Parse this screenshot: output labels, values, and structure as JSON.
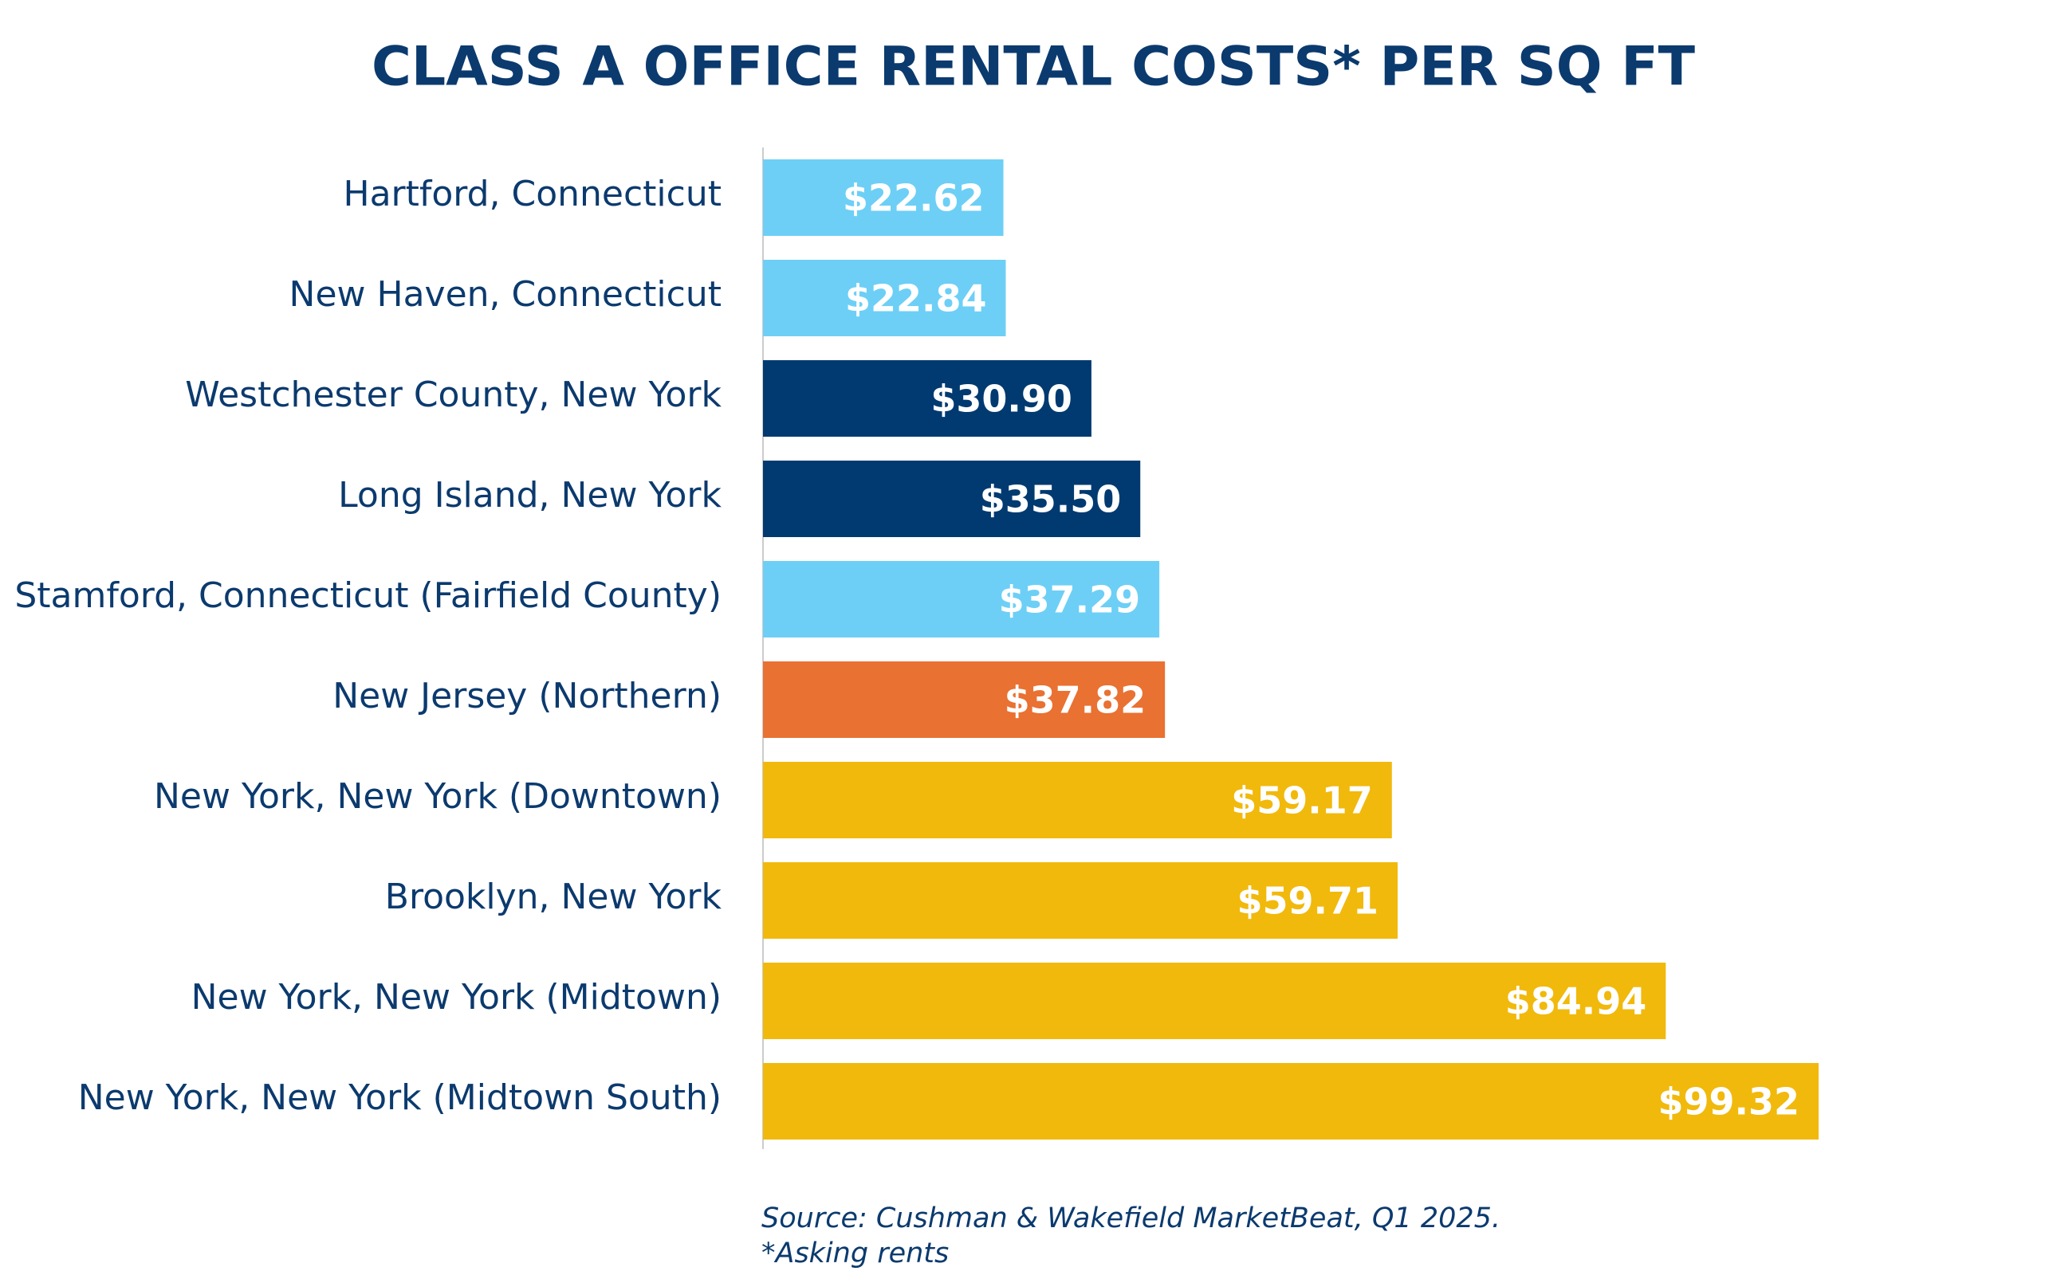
{
  "chart_data": {
    "type": "bar",
    "orientation": "horizontal",
    "title": "CLASS A OFFICE RENTAL COSTS* PER SQ FT",
    "categories": [
      "Hartford, Connecticut",
      "New Haven, Connecticut",
      "Westchester County, New York",
      "Long Island, New York",
      "Stamford, Connecticut (Fairfield County)",
      "New Jersey (Northern)",
      "New York, New York (Downtown)",
      "Brooklyn, New York",
      "New York, New York (Midtown)",
      "New York, New York (Midtown South)"
    ],
    "values": [
      22.62,
      22.84,
      30.9,
      35.5,
      37.29,
      37.82,
      59.17,
      59.71,
      84.94,
      99.32
    ],
    "value_labels": [
      "$22.62",
      "$22.84",
      "$30.90",
      "$35.50",
      "$37.29",
      "$37.82",
      "$59.17",
      "$59.71",
      "$84.94",
      "$99.32"
    ],
    "colors": [
      "#6dcff6",
      "#6dcff6",
      "#003a70",
      "#003a70",
      "#6dcff6",
      "#e97132",
      "#f1b90c",
      "#f1b90c",
      "#f1b90c",
      "#f1b90c"
    ],
    "source": "Source: Cushman & Wakefield MarketBeat, Q1 2025.",
    "note": "*Asking rents"
  }
}
